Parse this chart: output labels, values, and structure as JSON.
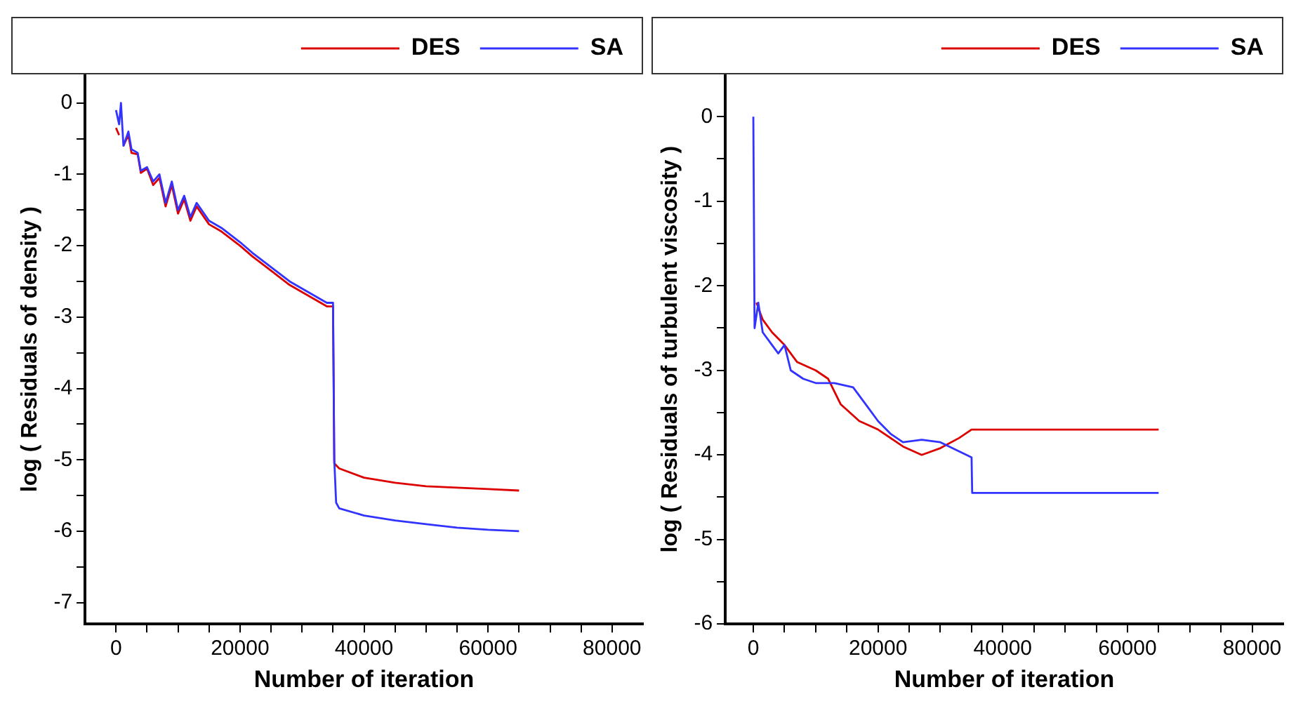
{
  "chart_data": [
    {
      "type": "line",
      "xlabel": "Number of iteration",
      "ylabel": "log ( Residuals of density )",
      "legend": "top right",
      "grid": false,
      "marker": "none",
      "line_style": "solid",
      "xlim": [
        -5000,
        85000
      ],
      "ylim": [
        -7.3,
        0.4
      ],
      "xticks": [
        0,
        {
          "value": 5000,
          "label": null
        },
        {
          "value": 10000,
          "label": null
        },
        {
          "value": 15000,
          "label": null
        },
        20000,
        {
          "value": 25000,
          "label": null
        },
        {
          "value": 30000,
          "label": null
        },
        {
          "value": 35000,
          "label": null
        },
        40000,
        {
          "value": 45000,
          "label": null
        },
        {
          "value": 50000,
          "label": null
        },
        {
          "value": 55000,
          "label": null
        },
        60000,
        {
          "value": 65000,
          "label": null
        },
        {
          "value": 70000,
          "label": null
        },
        {
          "value": 75000,
          "label": null
        },
        80000
      ],
      "yticks": [
        -7,
        {
          "value": -6.5,
          "label": null
        },
        -6,
        {
          "value": -5.5,
          "label": null
        },
        -5,
        {
          "value": -4.5,
          "label": null
        },
        -4,
        {
          "value": -3.5,
          "label": null
        },
        -3,
        {
          "value": -2.5,
          "label": null
        },
        -2,
        {
          "value": -1.5,
          "label": null
        },
        -1,
        {
          "value": -0.5,
          "label": null
        },
        0
      ],
      "series": [
        {
          "name": "DES",
          "color": "#dd0000",
          "x": [
            0,
            500,
            800,
            1200,
            2000,
            2500,
            3500,
            4000,
            5000,
            6000,
            7000,
            8000,
            9000,
            10000,
            11000,
            12000,
            13000,
            15000,
            17000,
            20000,
            22000,
            25000,
            28000,
            31000,
            34000,
            35000,
            35200,
            36000,
            40000,
            45000,
            50000,
            55000,
            60000,
            65000
          ],
          "values": [
            -0.35,
            -0.45,
            null,
            -0.6,
            -0.45,
            -0.7,
            -0.72,
            -0.98,
            -0.92,
            -1.15,
            -1.05,
            -1.45,
            -1.15,
            -1.55,
            -1.35,
            -1.65,
            -1.45,
            -1.7,
            -1.8,
            -2.0,
            -2.15,
            -2.35,
            -2.55,
            -2.7,
            -2.85,
            -2.85,
            -5.05,
            -5.12,
            -5.25,
            -5.32,
            -5.37,
            -5.39,
            -5.41,
            -5.43
          ]
        },
        {
          "name": "SA",
          "color": "#3333ff",
          "x": [
            0,
            500,
            800,
            1200,
            2000,
            2500,
            3500,
            4000,
            5000,
            6000,
            7000,
            8000,
            9000,
            10000,
            11000,
            12000,
            13000,
            15000,
            17000,
            20000,
            22000,
            25000,
            28000,
            31000,
            34000,
            35000,
            35200,
            35500,
            36000,
            40000,
            45000,
            50000,
            55000,
            60000,
            65000
          ],
          "values": [
            -0.1,
            -0.3,
            0,
            -0.6,
            -0.4,
            -0.65,
            -0.7,
            -0.95,
            -0.9,
            -1.1,
            -1.0,
            -1.4,
            -1.1,
            -1.5,
            -1.3,
            -1.6,
            -1.4,
            -1.65,
            -1.75,
            -1.95,
            -2.1,
            -2.3,
            -2.5,
            -2.65,
            -2.8,
            -2.8,
            -5.0,
            -5.6,
            -5.68,
            -5.78,
            -5.85,
            -5.9,
            -5.95,
            -5.98,
            -6.0
          ]
        }
      ]
    },
    {
      "type": "line",
      "xlabel": "Number of iteration",
      "ylabel": "log ( Residuals of turbulent viscosity )",
      "legend": "top right",
      "grid": false,
      "marker": "none",
      "line_style": "solid",
      "xlim": [
        -4500,
        85000
      ],
      "ylim": [
        -6,
        0.5
      ],
      "xticks": [
        0,
        {
          "value": 5000,
          "label": null
        },
        {
          "value": 10000,
          "label": null
        },
        {
          "value": 15000,
          "label": null
        },
        20000,
        {
          "value": 25000,
          "label": null
        },
        {
          "value": 30000,
          "label": null
        },
        {
          "value": 35000,
          "label": null
        },
        40000,
        {
          "value": 45000,
          "label": null
        },
        {
          "value": 50000,
          "label": null
        },
        {
          "value": 55000,
          "label": null
        },
        60000,
        {
          "value": 65000,
          "label": null
        },
        {
          "value": 70000,
          "label": null
        },
        {
          "value": 75000,
          "label": null
        },
        80000
      ],
      "yticks": [
        -6,
        {
          "value": -5.5,
          "label": null
        },
        -5,
        {
          "value": -4.5,
          "label": null
        },
        -4,
        {
          "value": -3.5,
          "label": null
        },
        -3,
        {
          "value": -2.5,
          "label": null
        },
        -2,
        {
          "value": -1.5,
          "label": null
        },
        -1,
        {
          "value": -0.5,
          "label": null
        },
        0
      ],
      "series": [
        {
          "name": "DES",
          "color": "#dd0000",
          "x": [
            500,
            1500,
            3000,
            5000,
            7000,
            10000,
            12000,
            14000,
            17000,
            20000,
            24000,
            27000,
            30000,
            33000,
            35000,
            65000
          ],
          "values": [
            -2.2,
            -2.4,
            -2.55,
            -2.7,
            -2.9,
            -3.0,
            -3.1,
            -3.4,
            -3.6,
            -3.7,
            -3.9,
            -4.0,
            -3.92,
            -3.8,
            -3.7,
            -3.7
          ]
        },
        {
          "name": "SA",
          "color": "#3333ff",
          "x": [
            0,
            200,
            800,
            1500,
            3000,
            4000,
            5000,
            6000,
            8000,
            10000,
            13000,
            16000,
            18000,
            20000,
            22000,
            24000,
            27000,
            30000,
            35000,
            35100,
            65000
          ],
          "values": [
            0,
            -2.5,
            -2.2,
            -2.55,
            -2.7,
            -2.8,
            -2.7,
            -3.0,
            -3.1,
            -3.15,
            -3.15,
            -3.2,
            -3.4,
            -3.6,
            -3.75,
            -3.85,
            -3.82,
            -3.85,
            -4.03,
            -4.45,
            -4.45
          ]
        }
      ]
    }
  ]
}
